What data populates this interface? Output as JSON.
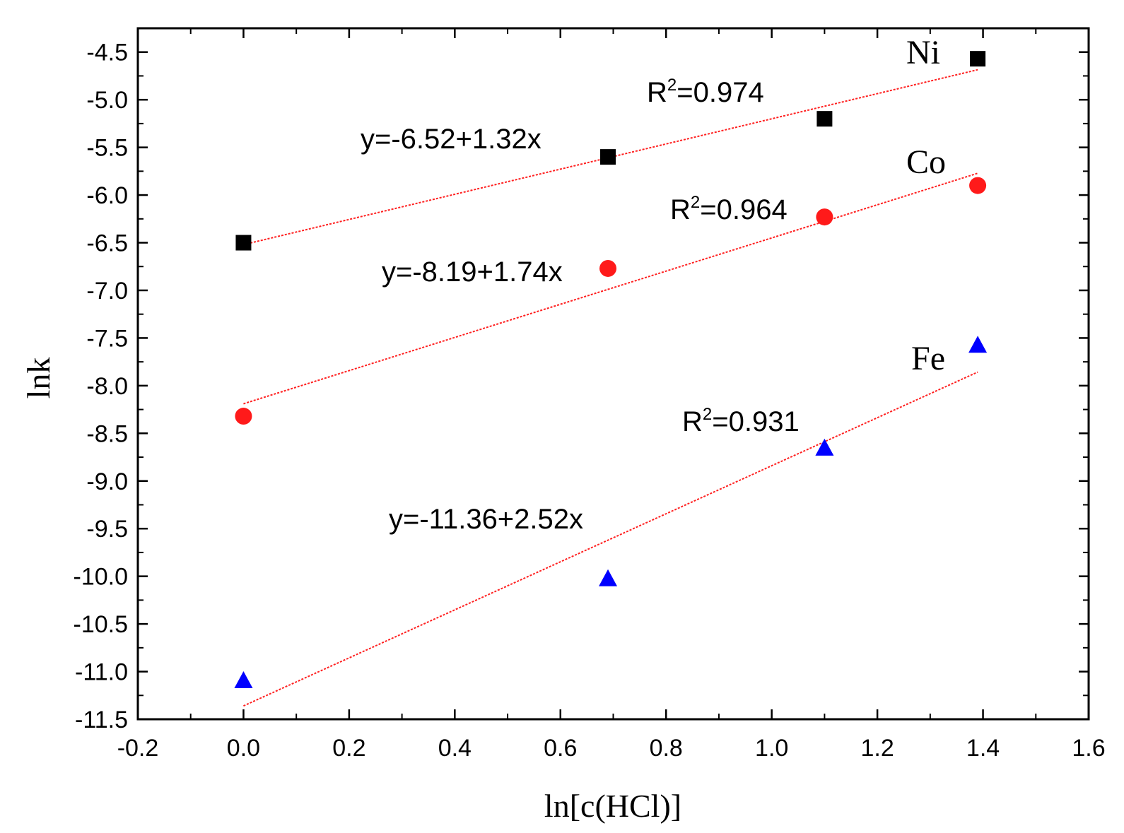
{
  "chart_data": {
    "type": "scatter",
    "title": "",
    "xlabel": "ln[c(HCl)]",
    "ylabel": "lnk",
    "xlim": [
      -0.2,
      1.6
    ],
    "ylim": [
      -11.5,
      -4.25
    ],
    "x_ticks": [
      -0.2,
      0.0,
      0.2,
      0.4,
      0.6,
      0.8,
      1.0,
      1.2,
      1.4,
      1.6
    ],
    "x_tick_labels": [
      "-0.2",
      "0.0",
      "0.2",
      "0.4",
      "0.6",
      "0.8",
      "1.0",
      "1.2",
      "1.4",
      "1.6"
    ],
    "y_ticks": [
      -11.5,
      -11.0,
      -10.5,
      -10.0,
      -9.5,
      -9.0,
      -8.5,
      -8.0,
      -7.5,
      -7.0,
      -6.5,
      -6.0,
      -5.5,
      -5.0,
      -4.5
    ],
    "y_tick_labels": [
      "-11.5",
      "-11.0",
      "-10.5",
      "-10.0",
      "-9.5",
      "-9.0",
      "-8.5",
      "-8.0",
      "-7.5",
      "-7.0",
      "-6.5",
      "-6.0",
      "-5.5",
      "-5.0",
      "-4.5"
    ],
    "grid": false,
    "fit_line_color": "#ff2020",
    "series": [
      {
        "name": "Ni",
        "marker": "square",
        "color": "#000000",
        "x": [
          0.0,
          0.69,
          1.1,
          1.39
        ],
        "y": [
          -6.5,
          -5.6,
          -5.2,
          -4.57
        ],
        "fit": {
          "intercept": -6.52,
          "slope": 1.32
        },
        "equation_label": "y=-6.52+1.32x",
        "r2_prefix": "R",
        "r2_sup": "2",
        "r2_value": "=0.974"
      },
      {
        "name": "Co",
        "marker": "circle",
        "color": "#ff1a1a",
        "x": [
          0.0,
          0.69,
          1.1,
          1.39
        ],
        "y": [
          -8.32,
          -6.77,
          -6.23,
          -5.9
        ],
        "fit": {
          "intercept": -8.19,
          "slope": 1.74
        },
        "equation_label": "y=-8.19+1.74x",
        "r2_prefix": "R",
        "r2_sup": "2",
        "r2_value": "=0.964"
      },
      {
        "name": "Fe",
        "marker": "triangle",
        "color": "#0000ff",
        "x": [
          0.0,
          0.69,
          1.1,
          1.39
        ],
        "y": [
          -11.1,
          -10.03,
          -8.66,
          -7.58
        ],
        "fit": {
          "intercept": -11.36,
          "slope": 2.52
        },
        "equation_label": "y=-11.36+2.52x",
        "r2_prefix": "R",
        "r2_sup": "2",
        "r2_value": "=0.931"
      }
    ]
  }
}
